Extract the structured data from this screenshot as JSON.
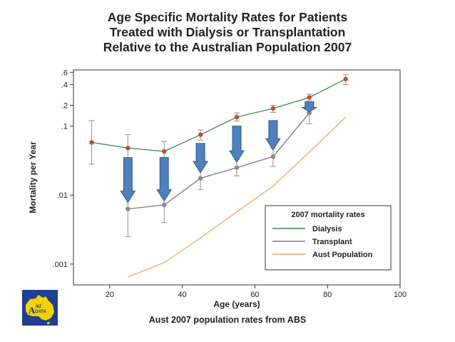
{
  "title": {
    "line1": "Age Specific Mortality Rates for Patients",
    "line2": "Treated with Dialysis or Transplantation",
    "line3": "Relative to the Australian Population 2007"
  },
  "footer": "Aust 2007 population rates from ABS",
  "logo": {
    "text_top": "NZ",
    "text_mid": "DATA",
    "text_a": "A"
  },
  "colors": {
    "dialysis": "#3f8a4f",
    "transplant": "#8c6c8f",
    "aust": "#f2a463",
    "marker_red": "#c8472c",
    "marker_grey": "#8a8a8a",
    "arrow": "#4f81bd",
    "arrow_edge": "#2d5a8c"
  },
  "chart_data": {
    "type": "line",
    "title": "Age Specific Mortality Rates for Patients Treated with Dialysis or Transplantation Relative to the Australian Population 2007",
    "xlabel": "Age (years)",
    "ylabel": "Mortality per Year",
    "xlim": [
      10,
      100
    ],
    "ylim": [
      0.0005,
      0.65
    ],
    "yscale": "log",
    "xticks": [
      20,
      40,
      60,
      80,
      100
    ],
    "xtick_labels": [
      "20",
      "40",
      "60",
      "80",
      "100"
    ],
    "yticks": [
      0.6,
      0.4,
      0.2,
      0.1,
      0.01,
      0.001
    ],
    "ytick_labels": [
      ".6",
      ".4",
      ".2",
      ".1",
      ".01",
      ".001"
    ],
    "legend_title": "2007 mortality rates",
    "legend_position": "bottom-right",
    "series": [
      {
        "name": "Dialysis",
        "x": [
          15,
          25,
          35,
          45,
          55,
          65,
          75,
          85
        ],
        "values": [
          0.058,
          0.048,
          0.043,
          0.075,
          0.135,
          0.18,
          0.26,
          0.48
        ],
        "ci_low": [
          0.028,
          0.03,
          0.03,
          0.062,
          0.118,
          0.158,
          0.235,
          0.4
        ],
        "ci_high": [
          0.12,
          0.075,
          0.06,
          0.088,
          0.155,
          0.2,
          0.29,
          0.56
        ]
      },
      {
        "name": "Transplant",
        "x": [
          25,
          35,
          45,
          55,
          65,
          75
        ],
        "values": [
          0.0063,
          0.0072,
          0.0175,
          0.025,
          0.036,
          0.155
        ],
        "ci_low": [
          0.0025,
          0.004,
          0.012,
          0.019,
          0.026,
          0.108
        ],
        "ci_high": [
          0.0115,
          0.0115,
          0.024,
          0.033,
          0.048,
          0.19
        ]
      },
      {
        "name": "Aust Population",
        "x": [
          25,
          35,
          45,
          55,
          65,
          75,
          85
        ],
        "values": [
          0.00065,
          0.00105,
          0.0024,
          0.0057,
          0.0135,
          0.042,
          0.135
        ]
      }
    ],
    "annotations": [
      {
        "type": "down-arrow",
        "x": 25,
        "from": 0.035,
        "to": 0.0078
      },
      {
        "type": "down-arrow",
        "x": 35,
        "from": 0.035,
        "to": 0.0082
      },
      {
        "type": "down-arrow",
        "x": 45,
        "from": 0.056,
        "to": 0.021
      },
      {
        "type": "down-arrow",
        "x": 55,
        "from": 0.1,
        "to": 0.03
      },
      {
        "type": "down-arrow",
        "x": 65,
        "from": 0.12,
        "to": 0.045
      },
      {
        "type": "down-arrow",
        "x": 75,
        "from": 0.225,
        "to": 0.16
      }
    ]
  }
}
